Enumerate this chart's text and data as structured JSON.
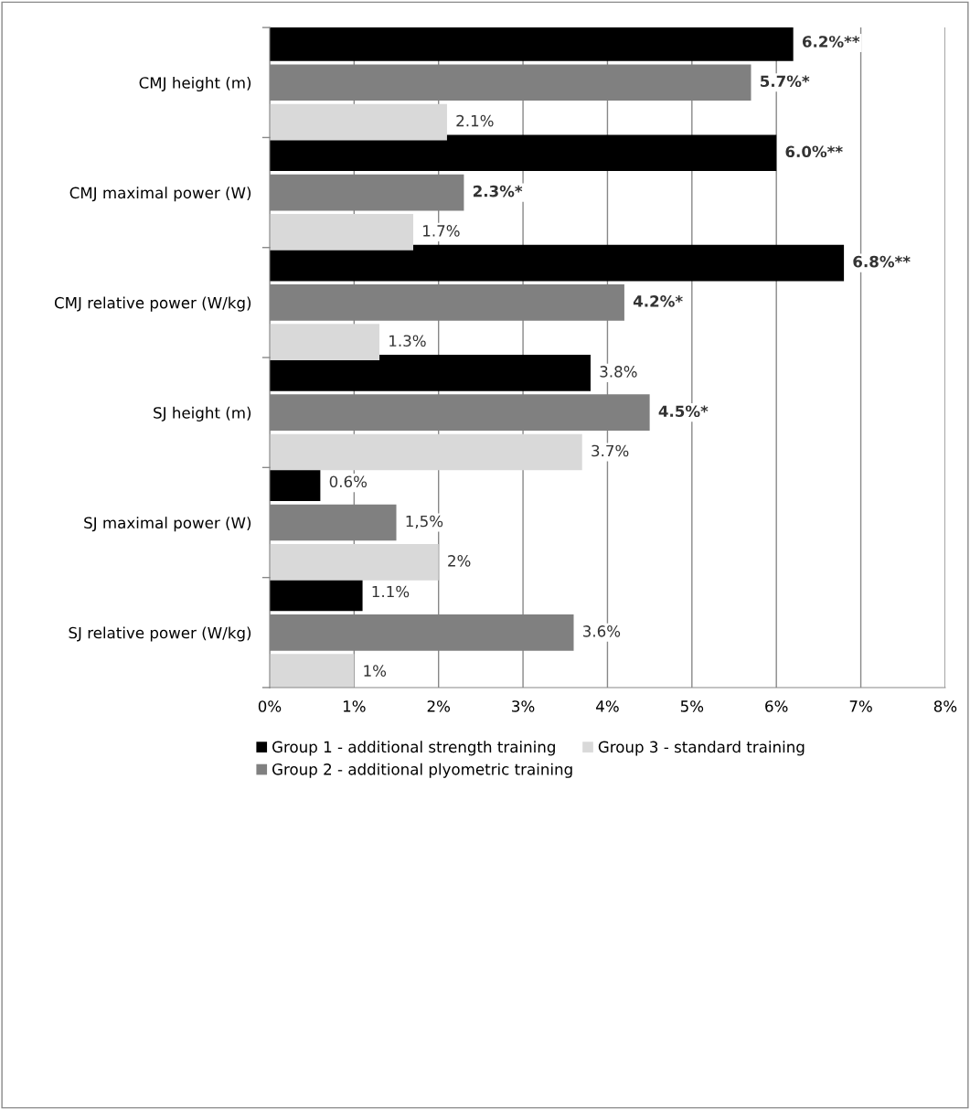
{
  "chart_data": {
    "type": "bar",
    "orientation": "horizontal",
    "categories": [
      "CMJ height (m)",
      "CMJ maximal power (W)",
      "CMJ relative power (W/kg)",
      "SJ height (m)",
      "SJ maximal power (W)",
      "SJ relative power (W/kg)"
    ],
    "series": [
      {
        "name": "Group 1 - additional strength training",
        "color": "#000000",
        "values": [
          6.2,
          6.0,
          6.8,
          3.8,
          0.6,
          1.1
        ],
        "value_labels": [
          "6.2%**",
          "6.0%**",
          "6.8%**",
          "3.8%",
          "0.6%",
          "1.1%"
        ]
      },
      {
        "name": "Group 2 - additional plyometric training",
        "color": "#808080",
        "values": [
          5.7,
          2.3,
          4.2,
          4.5,
          1.5,
          3.6
        ],
        "value_labels": [
          "5.7%*",
          "2.3%*",
          "4.2%*",
          "4.5%*",
          "1,5%",
          "3.6%"
        ]
      },
      {
        "name": "Group 3 - standard training",
        "color": "#d9d9d9",
        "values": [
          2.1,
          1.7,
          1.3,
          3.7,
          2.0,
          1.0
        ],
        "value_labels": [
          "2.1%",
          "1.7%",
          "1.3%",
          "3.7%",
          "2%",
          "1%"
        ]
      }
    ],
    "xlim": [
      0,
      8
    ],
    "xticks": [
      {
        "value": 0,
        "label": "0%"
      },
      {
        "value": 1,
        "label": "1%"
      },
      {
        "value": 2,
        "label": "2%"
      },
      {
        "value": 3,
        "label": "3%"
      },
      {
        "value": 4,
        "label": "4%"
      },
      {
        "value": 5,
        "label": "5%"
      },
      {
        "value": 6,
        "label": "6%"
      },
      {
        "value": 7,
        "label": "7%"
      },
      {
        "value": 8,
        "label": "8%"
      }
    ],
    "grid": "x",
    "legend": "bottom"
  }
}
